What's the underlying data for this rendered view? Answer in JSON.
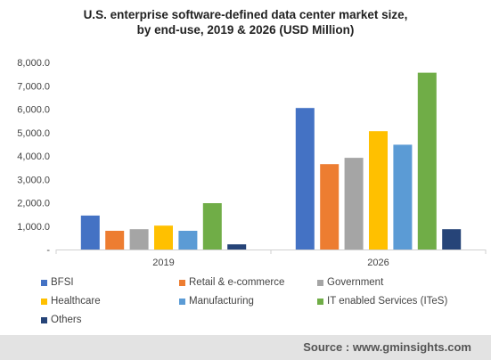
{
  "chart_data": {
    "type": "bar",
    "title_lines": [
      "U.S. enterprise software-defined data center market size,",
      "by end-use, 2019 & 2026 (USD Million)"
    ],
    "categories": [
      "2019",
      "2026"
    ],
    "ylim": [
      0,
      8000
    ],
    "yticks": [
      0,
      1000,
      2000,
      3000,
      4000,
      5000,
      6000,
      7000,
      8000
    ],
    "ytick_labels": [
      "-",
      "1,000.0",
      "2,000.0",
      "3,000.0",
      "4,000.0",
      "5,000.0",
      "6,000.0",
      "7,000.0",
      "8,000.0"
    ],
    "grid": false,
    "legend_position": "bottom",
    "series": [
      {
        "name": "BFSI",
        "color": "#4472c4",
        "values": [
          1450,
          6050
        ]
      },
      {
        "name": "Retail & e-commerce",
        "color": "#ed7d31",
        "values": [
          800,
          3650
        ]
      },
      {
        "name": "Government",
        "color": "#a5a5a5",
        "values": [
          870,
          3920
        ]
      },
      {
        "name": "Healthcare",
        "color": "#ffc000",
        "values": [
          1020,
          5060
        ]
      },
      {
        "name": "Manufacturing",
        "color": "#5b9bd5",
        "values": [
          800,
          4480
        ]
      },
      {
        "name": "IT enabled Services (ITeS)",
        "color": "#70ad47",
        "values": [
          1980,
          7560
        ]
      },
      {
        "name": "Others",
        "color": "#264478",
        "values": [
          220,
          870
        ]
      }
    ]
  },
  "source": "Source : www.gminsights.com"
}
